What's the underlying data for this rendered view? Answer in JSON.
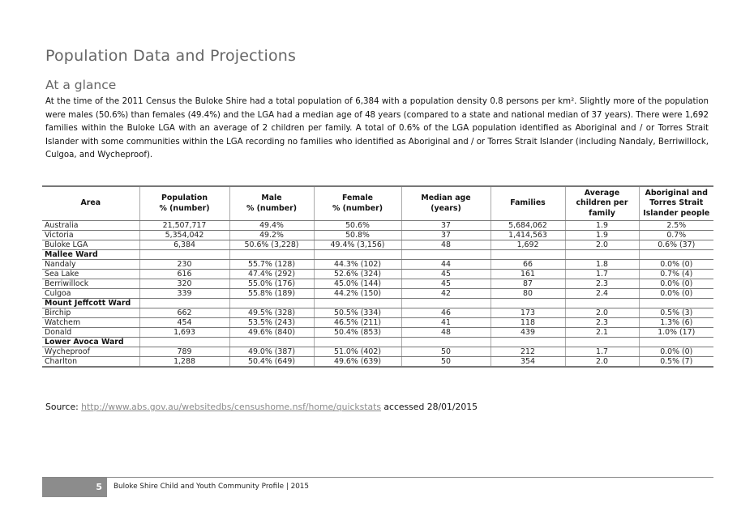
{
  "title": "Population Data and Projections",
  "subtitle": "At a glance",
  "paragraph": "At the time of the 2011 Census the Buloke Shire had a total population of 6,384 with a population density 0.8 persons per km². Slightly more of the population were males (50.6%) than females (49.4%) and the LGA had a median age of 48 years (compared to a state and national median of 37 years). There were 1,692 families within the Buloke LGA with an average of 2 children per family. A total of 0.6% of the LGA population identified as Aboriginal and / or Torres Strait Islander with some communities within the LGA recording no families who identified as Aboriginal and / or Torres Strait Islander (including Nandaly, Berriwillock, Culgoa, and Wycheproof).",
  "table": {
    "headers": [
      "Area",
      "Population\n% (number)",
      "Male\n% (number)",
      "Female\n% (number)",
      "Median age\n(years)",
      "Families",
      "Average\nchildren per\nfamily",
      "Aboriginal and\nTorres Strait\nIslander people"
    ],
    "rows": [
      {
        "cells": [
          "Australia",
          "21,507,717",
          "49.4%",
          "50.6%",
          "37",
          "5,684,062",
          "1.9",
          "2.5%"
        ]
      },
      {
        "cells": [
          "Victoria",
          "5,354,042",
          "49.2%",
          "50.8%",
          "37",
          "1,414,563",
          "1.9",
          "0.7%"
        ]
      },
      {
        "cells": [
          "Buloke LGA",
          "6,384",
          "50.6% (3,228)",
          "49.4% (3,156)",
          "48",
          "1,692",
          "2.0",
          "0.6% (37)"
        ]
      },
      {
        "ward": "Mallee Ward"
      },
      {
        "cells": [
          "Nandaly",
          "230",
          "55.7% (128)",
          "44.3% (102)",
          "44",
          "66",
          "1.8",
          "0.0% (0)"
        ]
      },
      {
        "cells": [
          "Sea Lake",
          "616",
          "47.4% (292)",
          "52.6% (324)",
          "45",
          "161",
          "1.7",
          "0.7% (4)"
        ]
      },
      {
        "cells": [
          "Berriwillock",
          "320",
          "55.0% (176)",
          "45.0% (144)",
          "45",
          "87",
          "2.3",
          "0.0% (0)"
        ]
      },
      {
        "cells": [
          "Culgoa",
          "339",
          "55.8% (189)",
          "44.2% (150)",
          "42",
          "80",
          "2.4",
          "0.0% (0)"
        ]
      },
      {
        "ward": "Mount Jeffcott Ward"
      },
      {
        "cells": [
          "Birchip",
          "662",
          "49.5% (328)",
          "50.5% (334)",
          "46",
          "173",
          "2.0",
          "0.5% (3)"
        ]
      },
      {
        "cells": [
          "Watchem",
          "454",
          "53.5% (243)",
          "46.5% (211)",
          "41",
          "118",
          "2.3",
          "1.3% (6)"
        ]
      },
      {
        "cells": [
          "Donald",
          "1,693",
          "49.6% (840)",
          "50.4% (853)",
          "48",
          "439",
          "2.1",
          "1.0% (17)"
        ]
      },
      {
        "ward": "Lower Avoca Ward"
      },
      {
        "cells": [
          "Wycheproof",
          "789",
          "49.0% (387)",
          "51.0% (402)",
          "50",
          "212",
          "1.7",
          "0.0% (0)"
        ]
      },
      {
        "cells": [
          "Charlton",
          "1,288",
          "50.4% (649)",
          "49.6% (639)",
          "50",
          "354",
          "2.0",
          "0.5% (7)"
        ]
      }
    ]
  },
  "source": {
    "label": "Source:",
    "link": "http://www.abs.gov.au/websitedbs/censushome.nsf/home/quickstats",
    "suffix": "accessed 28/01/2015"
  },
  "footer": {
    "page_number": "5",
    "text": "Buloke Shire Child and Youth Community Profile | 2015"
  }
}
